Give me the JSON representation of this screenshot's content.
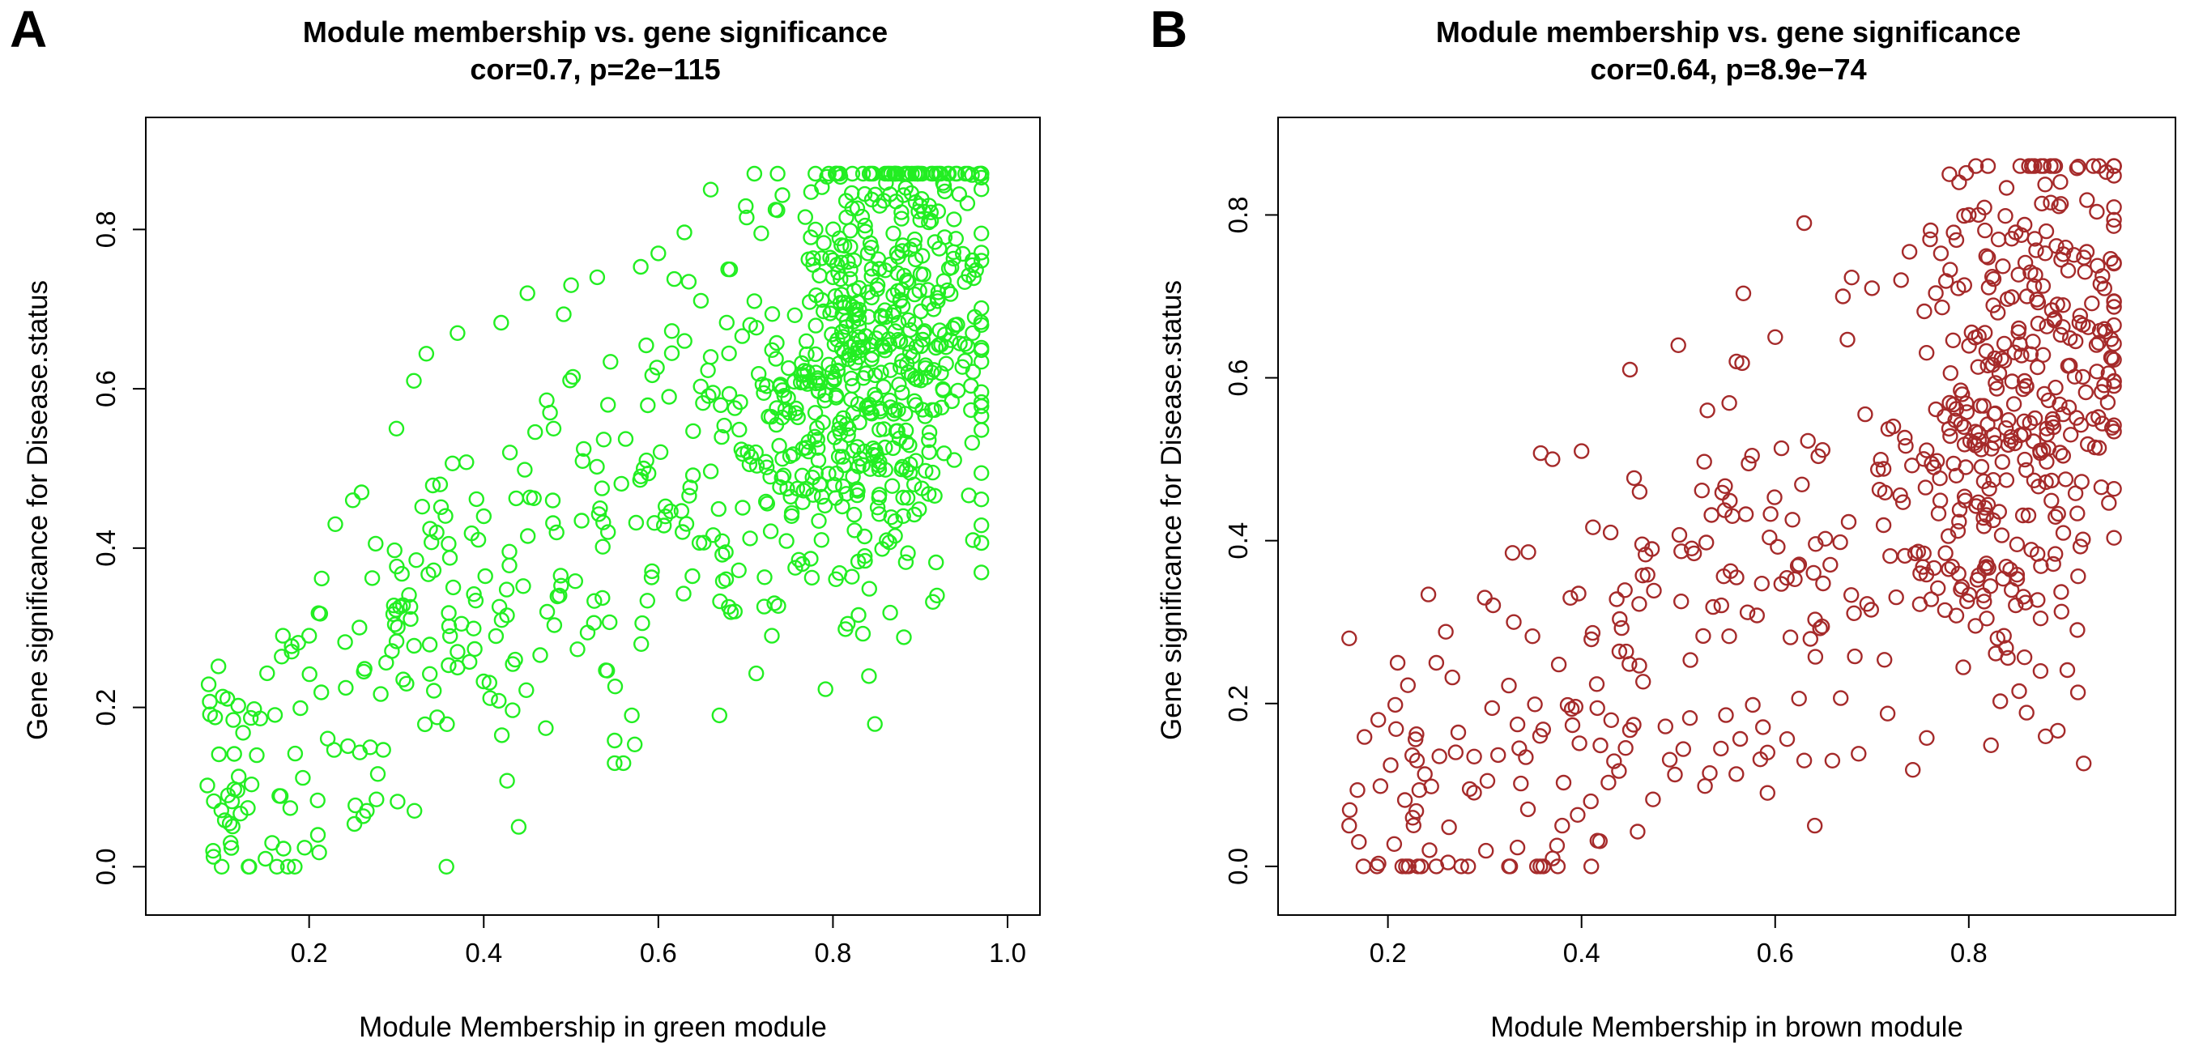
{
  "chart_data": [
    {
      "type": "scatter",
      "panel_label": "A",
      "title": "Module membership vs. gene significance",
      "subtitle": "cor=0.7, p=2e−115",
      "xlabel": "Module Membership in green module",
      "ylabel": "Gene significance for  Disease.status",
      "xlim": [
        0.05,
        1.0
      ],
      "ylim": [
        -0.02,
        0.9
      ],
      "xticks": [
        0.2,
        0.4,
        0.6,
        0.8,
        1.0
      ],
      "xtick_labels": [
        "0.2",
        "0.4",
        "0.6",
        "0.8",
        "1.0"
      ],
      "yticks": [
        0.0,
        0.2,
        0.4,
        0.6,
        0.8
      ],
      "ytick_labels": [
        "0.0",
        "0.2",
        "0.4",
        "0.6",
        "0.8"
      ],
      "marker_color": "#22ee22",
      "n_points": 900,
      "point_model": "y = 0.70*x + 0.05 + noise(sd 0.13); x ~ 0.08..0.97, denser near 0.85",
      "x": [
        0.09,
        0.11,
        0.14,
        0.15,
        0.17,
        0.18,
        0.2,
        0.21,
        0.23,
        0.25,
        0.27,
        0.3,
        0.32,
        0.35,
        0.37,
        0.4,
        0.43,
        0.45,
        0.48,
        0.5,
        0.53,
        0.55,
        0.58,
        0.6,
        0.63,
        0.66,
        0.68,
        0.71,
        0.73,
        0.75,
        0.78,
        0.8,
        0.82,
        0.84,
        0.86,
        0.88,
        0.9,
        0.92,
        0.94,
        0.96,
        0.66,
        0.71,
        0.91,
        0.67,
        0.56,
        0.37,
        0.26,
        0.44
      ],
      "y": [
        0.02,
        0.03,
        0.14,
        0.01,
        0.29,
        0.27,
        0.29,
        0.04,
        0.43,
        0.46,
        0.15,
        0.55,
        0.61,
        0.48,
        0.67,
        0.44,
        0.52,
        0.72,
        0.55,
        0.73,
        0.74,
        0.13,
        0.49,
        0.77,
        0.66,
        0.64,
        0.75,
        0.71,
        0.29,
        0.57,
        0.8,
        0.74,
        0.75,
        0.77,
        0.69,
        0.78,
        0.83,
        0.71,
        0.68,
        0.67,
        0.85,
        0.87,
        0.83,
        0.19,
        0.13,
        0.25,
        0.47,
        0.05
      ]
    },
    {
      "type": "scatter",
      "panel_label": "B",
      "title": "Module membership vs. gene significance",
      "subtitle": "cor=0.64, p=8.9e−74",
      "xlabel": "Module Membership in brown module",
      "ylabel": "Gene significance for  Disease.status",
      "xlim": [
        0.12,
        0.98
      ],
      "ylim": [
        -0.02,
        0.88
      ],
      "xticks": [
        0.2,
        0.4,
        0.6,
        0.8
      ],
      "xtick_labels": [
        "0.2",
        "0.4",
        "0.6",
        "0.8"
      ],
      "yticks": [
        0.0,
        0.2,
        0.4,
        0.6,
        0.8
      ],
      "ytick_labels": [
        "0.0",
        "0.2",
        "0.4",
        "0.6",
        "0.8"
      ],
      "marker_color": "#a52a2a",
      "n_points": 620,
      "point_model": "y = 0.80*x - 0.12 + noise(sd 0.14); x ~ 0.16..0.95, denser near 0.85",
      "x": [
        0.16,
        0.17,
        0.19,
        0.21,
        0.23,
        0.25,
        0.27,
        0.3,
        0.33,
        0.37,
        0.4,
        0.43,
        0.46,
        0.5,
        0.53,
        0.56,
        0.6,
        0.63,
        0.67,
        0.7,
        0.73,
        0.76,
        0.79,
        0.81,
        0.83,
        0.86,
        0.88,
        0.9,
        0.92,
        0.94,
        0.95,
        0.78,
        0.8,
        0.63,
        0.45,
        0.41,
        0.38,
        0.16
      ],
      "y": [
        0.05,
        0.03,
        0.18,
        0.25,
        0.13,
        0.25,
        0.14,
        0.33,
        0.3,
        0.5,
        0.51,
        0.41,
        0.46,
        0.64,
        0.56,
        0.62,
        0.65,
        0.79,
        0.7,
        0.71,
        0.72,
        0.77,
        0.84,
        0.8,
        0.68,
        0.7,
        0.78,
        0.76,
        0.73,
        0.66,
        0.59,
        0.85,
        0.8,
        0.13,
        0.61,
        0.0,
        0.05,
        0.28
      ]
    }
  ]
}
